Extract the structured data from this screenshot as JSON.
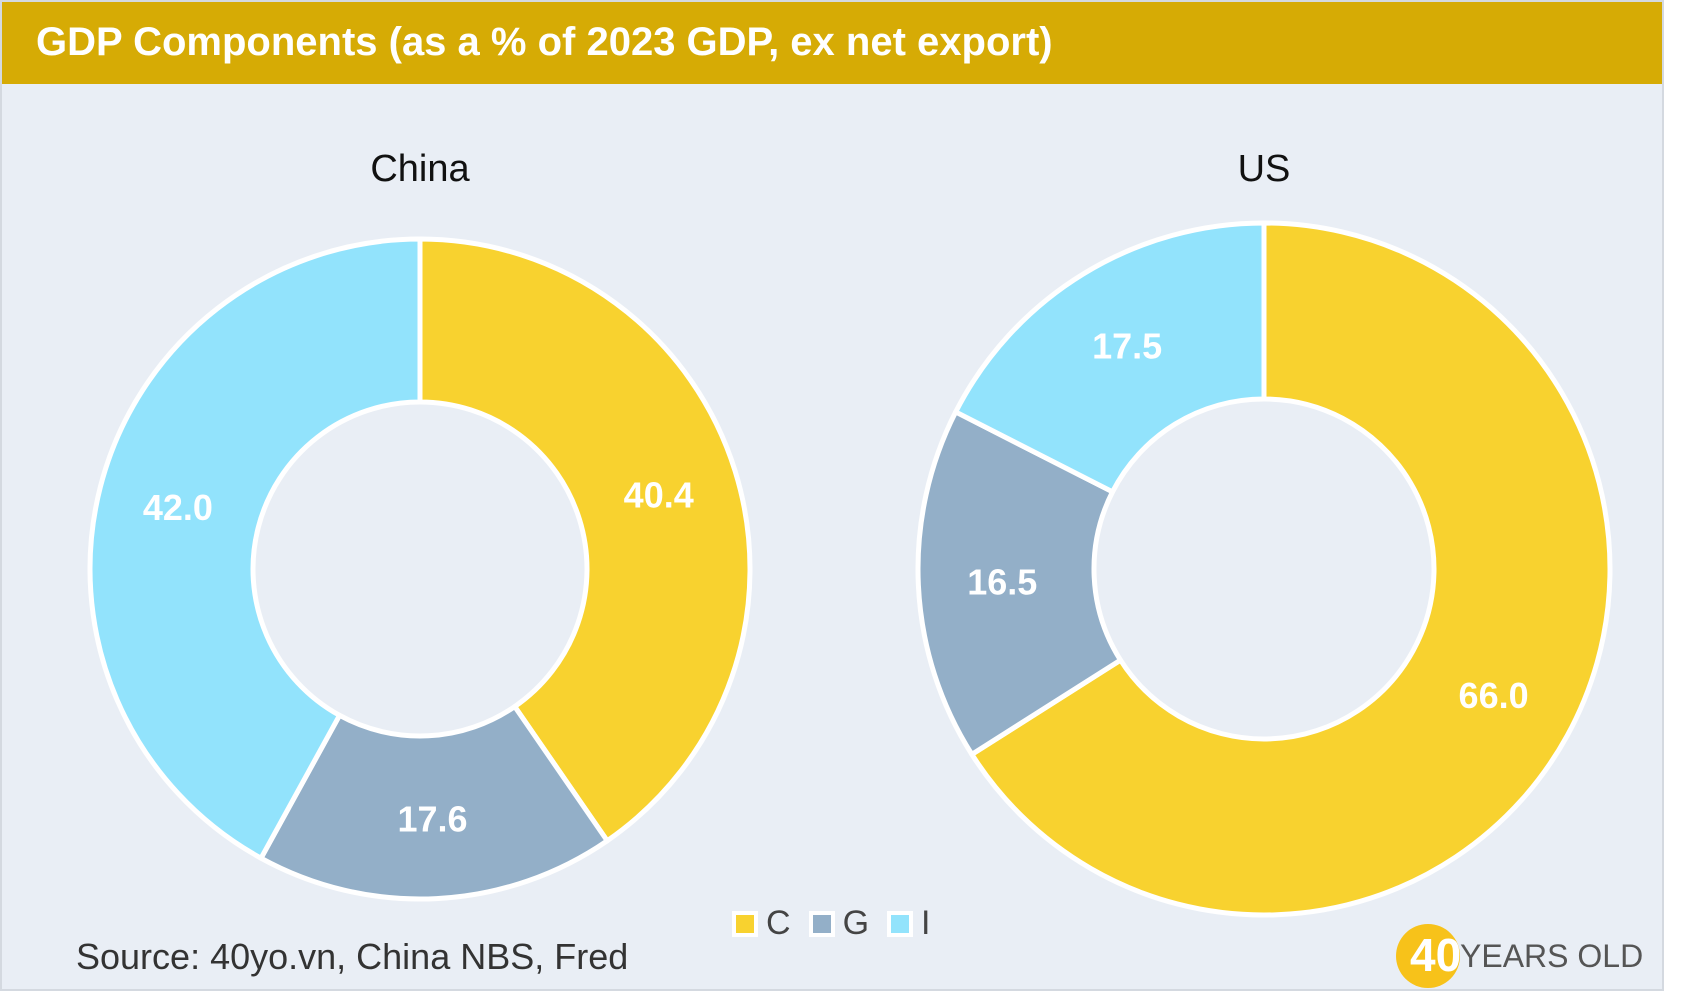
{
  "title": "GDP Components (as a % of 2023 GDP, ex net export)",
  "colors": {
    "C": "#f8d22f",
    "G": "#93afc8",
    "I": "#92e3fc",
    "header": "#d6ab05",
    "background": "#e9eef5"
  },
  "chart_data": [
    {
      "type": "pie",
      "donut": true,
      "title": "China",
      "slices": [
        {
          "label": "C",
          "value": 40.4
        },
        {
          "label": "G",
          "value": 17.6
        },
        {
          "label": "I",
          "value": 42.0
        }
      ]
    },
    {
      "type": "pie",
      "donut": true,
      "title": "US",
      "slices": [
        {
          "label": "C",
          "value": 66.0
        },
        {
          "label": "G",
          "value": 16.5
        },
        {
          "label": "I",
          "value": 17.5
        }
      ]
    }
  ],
  "legend": {
    "placement": "bottom-center",
    "items": [
      "C",
      "G",
      "I"
    ]
  },
  "source": "Source: 40yo.vn, China NBS, Fred",
  "brand": {
    "number": "40",
    "text": "YEARS OLD"
  }
}
